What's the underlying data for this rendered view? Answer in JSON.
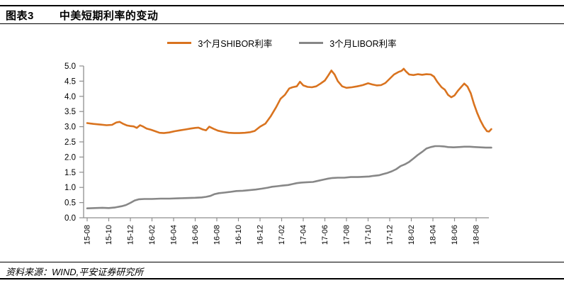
{
  "header": {
    "figure_label": "图表3",
    "title": "中美短期利率的变动"
  },
  "footer": {
    "source": "资料来源：WIND,平安证券研究所"
  },
  "chart_data": {
    "type": "line",
    "title": "中美短期利率的变动",
    "xlabel": "",
    "ylabel": "",
    "ylim": [
      0.0,
      5.0
    ],
    "y_tick_labels": [
      "0.0",
      "0.5",
      "1.0",
      "1.5",
      "2.0",
      "2.5",
      "3.0",
      "3.5",
      "4.0",
      "4.5",
      "5.0"
    ],
    "x_tick_labels": [
      "15-08",
      "15-10",
      "15-12",
      "16-02",
      "16-04",
      "16-06",
      "16-08",
      "16-10",
      "16-12",
      "17-02",
      "17-04",
      "17-06",
      "17-08",
      "17-10",
      "17-12",
      "18-02",
      "18-04",
      "18-06",
      "18-08"
    ],
    "x_unit": "year-month, one tick every 2 months, data monthly from 2015-08 to 2018-09",
    "grid": false,
    "legend_position": "top-center",
    "axis_color": "#8e8e8e",
    "series": [
      {
        "name": "3个月SHIBOR利率",
        "color": "#d9731f",
        "points": [
          [
            0,
            3.12
          ],
          [
            0.6,
            3.09
          ],
          [
            1.2,
            3.07
          ],
          [
            1.8,
            3.05
          ],
          [
            2.3,
            3.06
          ],
          [
            2.7,
            3.14
          ],
          [
            3.0,
            3.16
          ],
          [
            3.3,
            3.1
          ],
          [
            3.7,
            3.04
          ],
          [
            4.0,
            3.02
          ],
          [
            4.3,
            3.01
          ],
          [
            4.6,
            2.96
          ],
          [
            4.9,
            3.05
          ],
          [
            5.2,
            3.0
          ],
          [
            5.5,
            2.94
          ],
          [
            5.9,
            2.9
          ],
          [
            6.3,
            2.85
          ],
          [
            6.7,
            2.8
          ],
          [
            7.1,
            2.79
          ],
          [
            7.6,
            2.81
          ],
          [
            8.1,
            2.85
          ],
          [
            8.6,
            2.88
          ],
          [
            9.1,
            2.91
          ],
          [
            9.6,
            2.94
          ],
          [
            10.0,
            2.96
          ],
          [
            10.3,
            2.97
          ],
          [
            10.7,
            2.91
          ],
          [
            11.0,
            2.88
          ],
          [
            11.3,
            3.0
          ],
          [
            11.7,
            2.93
          ],
          [
            12.1,
            2.87
          ],
          [
            12.6,
            2.83
          ],
          [
            13.1,
            2.8
          ],
          [
            13.6,
            2.79
          ],
          [
            14.1,
            2.79
          ],
          [
            14.6,
            2.8
          ],
          [
            15.1,
            2.82
          ],
          [
            15.5,
            2.86
          ],
          [
            16.0,
            3.0
          ],
          [
            16.5,
            3.1
          ],
          [
            17.0,
            3.35
          ],
          [
            17.5,
            3.65
          ],
          [
            17.9,
            3.92
          ],
          [
            18.3,
            4.05
          ],
          [
            18.7,
            4.26
          ],
          [
            19.0,
            4.3
          ],
          [
            19.4,
            4.33
          ],
          [
            19.7,
            4.48
          ],
          [
            20.0,
            4.36
          ],
          [
            20.4,
            4.31
          ],
          [
            20.8,
            4.3
          ],
          [
            21.2,
            4.33
          ],
          [
            21.6,
            4.42
          ],
          [
            22.0,
            4.52
          ],
          [
            22.3,
            4.68
          ],
          [
            22.6,
            4.85
          ],
          [
            22.9,
            4.72
          ],
          [
            23.2,
            4.5
          ],
          [
            23.6,
            4.33
          ],
          [
            24.0,
            4.28
          ],
          [
            24.5,
            4.3
          ],
          [
            25.0,
            4.33
          ],
          [
            25.5,
            4.37
          ],
          [
            26.0,
            4.43
          ],
          [
            26.4,
            4.39
          ],
          [
            26.8,
            4.36
          ],
          [
            27.2,
            4.37
          ],
          [
            27.6,
            4.44
          ],
          [
            28.0,
            4.58
          ],
          [
            28.4,
            4.72
          ],
          [
            28.8,
            4.8
          ],
          [
            29.1,
            4.84
          ],
          [
            29.3,
            4.91
          ],
          [
            29.5,
            4.82
          ],
          [
            29.8,
            4.72
          ],
          [
            30.2,
            4.7
          ],
          [
            30.6,
            4.73
          ],
          [
            31.0,
            4.71
          ],
          [
            31.4,
            4.73
          ],
          [
            31.8,
            4.72
          ],
          [
            32.1,
            4.65
          ],
          [
            32.4,
            4.48
          ],
          [
            32.8,
            4.3
          ],
          [
            33.1,
            4.22
          ],
          [
            33.4,
            4.05
          ],
          [
            33.7,
            3.97
          ],
          [
            34.0,
            4.03
          ],
          [
            34.3,
            4.18
          ],
          [
            34.6,
            4.3
          ],
          [
            34.9,
            4.42
          ],
          [
            35.2,
            4.32
          ],
          [
            35.5,
            4.1
          ],
          [
            35.8,
            3.75
          ],
          [
            36.1,
            3.45
          ],
          [
            36.4,
            3.2
          ],
          [
            36.7,
            3.0
          ],
          [
            37.0,
            2.85
          ],
          [
            37.2,
            2.84
          ],
          [
            37.4,
            2.92
          ]
        ]
      },
      {
        "name": "3个月LIBOR利率",
        "color": "#878787",
        "points": [
          [
            0,
            0.31
          ],
          [
            0.7,
            0.32
          ],
          [
            1.4,
            0.33
          ],
          [
            2.0,
            0.32
          ],
          [
            2.6,
            0.34
          ],
          [
            3.2,
            0.38
          ],
          [
            3.6,
            0.42
          ],
          [
            4.0,
            0.49
          ],
          [
            4.4,
            0.57
          ],
          [
            4.8,
            0.61
          ],
          [
            5.3,
            0.62
          ],
          [
            6.0,
            0.62
          ],
          [
            6.8,
            0.63
          ],
          [
            7.6,
            0.63
          ],
          [
            8.4,
            0.64
          ],
          [
            9.2,
            0.65
          ],
          [
            10.0,
            0.66
          ],
          [
            10.6,
            0.67
          ],
          [
            11.0,
            0.69
          ],
          [
            11.4,
            0.72
          ],
          [
            11.8,
            0.78
          ],
          [
            12.2,
            0.81
          ],
          [
            12.7,
            0.83
          ],
          [
            13.2,
            0.85
          ],
          [
            13.8,
            0.88
          ],
          [
            14.4,
            0.89
          ],
          [
            15.0,
            0.91
          ],
          [
            15.6,
            0.93
          ],
          [
            16.2,
            0.96
          ],
          [
            16.7,
            0.99
          ],
          [
            17.1,
            1.02
          ],
          [
            17.6,
            1.04
          ],
          [
            18.1,
            1.06
          ],
          [
            18.6,
            1.08
          ],
          [
            19.0,
            1.11
          ],
          [
            19.4,
            1.14
          ],
          [
            19.8,
            1.16
          ],
          [
            20.3,
            1.17
          ],
          [
            20.9,
            1.18
          ],
          [
            21.4,
            1.22
          ],
          [
            21.9,
            1.26
          ],
          [
            22.3,
            1.29
          ],
          [
            22.7,
            1.31
          ],
          [
            23.2,
            1.32
          ],
          [
            23.8,
            1.32
          ],
          [
            24.4,
            1.34
          ],
          [
            25.0,
            1.34
          ],
          [
            25.6,
            1.35
          ],
          [
            26.1,
            1.36
          ],
          [
            26.5,
            1.38
          ],
          [
            27.0,
            1.4
          ],
          [
            27.4,
            1.44
          ],
          [
            27.8,
            1.48
          ],
          [
            28.2,
            1.53
          ],
          [
            28.6,
            1.6
          ],
          [
            29.0,
            1.7
          ],
          [
            29.4,
            1.76
          ],
          [
            29.8,
            1.84
          ],
          [
            30.2,
            1.95
          ],
          [
            30.6,
            2.07
          ],
          [
            31.0,
            2.17
          ],
          [
            31.4,
            2.28
          ],
          [
            31.8,
            2.33
          ],
          [
            32.2,
            2.36
          ],
          [
            32.6,
            2.36
          ],
          [
            33.0,
            2.35
          ],
          [
            33.4,
            2.33
          ],
          [
            33.9,
            2.32
          ],
          [
            34.4,
            2.33
          ],
          [
            34.9,
            2.34
          ],
          [
            35.4,
            2.34
          ],
          [
            35.9,
            2.33
          ],
          [
            36.4,
            2.32
          ],
          [
            36.9,
            2.31
          ],
          [
            37.4,
            2.31
          ]
        ]
      }
    ]
  }
}
